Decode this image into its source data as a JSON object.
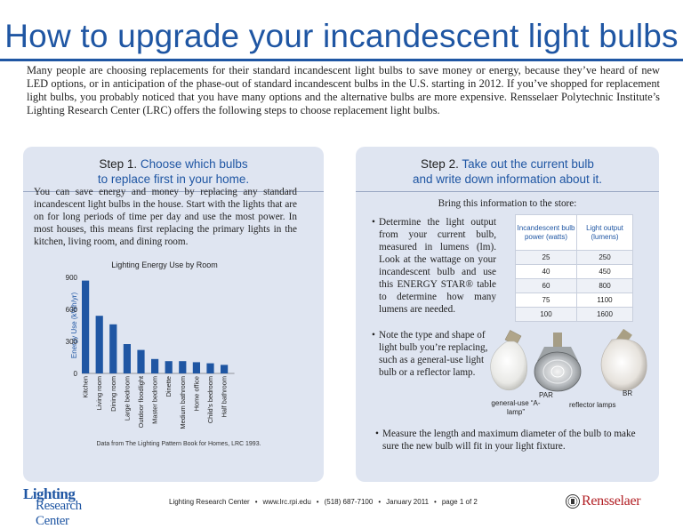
{
  "title": "How to upgrade your incandescent light bulbs",
  "intro": "Many people are choosing replacements for their standard incandescent light bulbs to save money or energy, because they’ve heard of new LED options, or in anticipation of the phase-out of standard incandescent bulbs in the U.S. starting in 2012. If you’ve shopped for replacement light bulbs, you probably noticed that you have many options and the alternative bulbs are more expensive. Rensselaer Polytechnic Institute’s Lighting Research Center (LRC) offers the following steps to choose replacement light bulbs.",
  "step1": {
    "label": "Step 1.",
    "heading_line1": "Choose which bulbs",
    "heading_line2": "to replace first in your home.",
    "body": "You can save energy and money by replacing any standard incandescent light bulbs in the house. Start with the lights that are on for long periods of time per day and use the most power. In most houses, this means first replacing the primary lights in the kitchen, living room, and dining room.",
    "credit": "Data from The Lighting Pattern Book for Homes, LRC 1993."
  },
  "chart_data": {
    "type": "bar",
    "title": "Lighting Energy Use by Room",
    "xlabel": "",
    "ylabel": "Energy Use (kWh/yr)",
    "ylim": [
      0,
      900
    ],
    "yticks": [
      0,
      300,
      600,
      900
    ],
    "categories": [
      "Kitchen",
      "Living room",
      "Dining room",
      "Large bedroom",
      "Outdoor floodlight",
      "Master bedroom",
      "Dinette",
      "Medium bathroom",
      "Home office",
      "Child's bedroom",
      "Half bathroom"
    ],
    "values": [
      870,
      540,
      460,
      275,
      220,
      135,
      115,
      115,
      105,
      95,
      80
    ],
    "bar_color": "#1f56a3",
    "grid": false,
    "legend": "none"
  },
  "step2": {
    "label": "Step 2.",
    "heading_line1": "Take out the current bulb",
    "heading_line2": "and write down information about it.",
    "lead": "Bring this information to the store:",
    "bullet1": "Determine the light output from your current bulb, measured in lumens (lm). Look at the wattage on your incandescent bulb and use this ENERGY STAR® table to determine how many lumens are needed.",
    "bullet2": "Note the type and shape of light bulb you’re replacing, such as a general-use light bulb or a reflector lamp.",
    "bullet3": "Measure the length and maximum diameter of the bulb to make sure the new bulb will fit in your light fixture.",
    "bullet_char": "•",
    "table": {
      "headers": [
        "Incandescent bulb power (watts)",
        "Light output (lumens)"
      ],
      "rows": [
        [
          "25",
          "250"
        ],
        [
          "40",
          "450"
        ],
        [
          "60",
          "800"
        ],
        [
          "75",
          "1100"
        ],
        [
          "100",
          "1600"
        ]
      ]
    },
    "bulb_labels": {
      "par": "PAR",
      "br": "BR",
      "general": "general-use “A-lamp”",
      "reflector": "reflector lamps"
    }
  },
  "footer": {
    "org": "Lighting Research Center",
    "url": "www.lrc.rpi.edu",
    "phone": "(518) 687-7100",
    "date": "January 2011",
    "page": "page 1 of 2",
    "sep": "•"
  },
  "logos": {
    "lrc_line1": "Lighting",
    "lrc_line2": "Research Center",
    "rpi": "Rensselaer"
  },
  "colors": {
    "accent": "#1f56a3",
    "panel": "#dfe5f1",
    "rpi_red": "#b21f24"
  }
}
